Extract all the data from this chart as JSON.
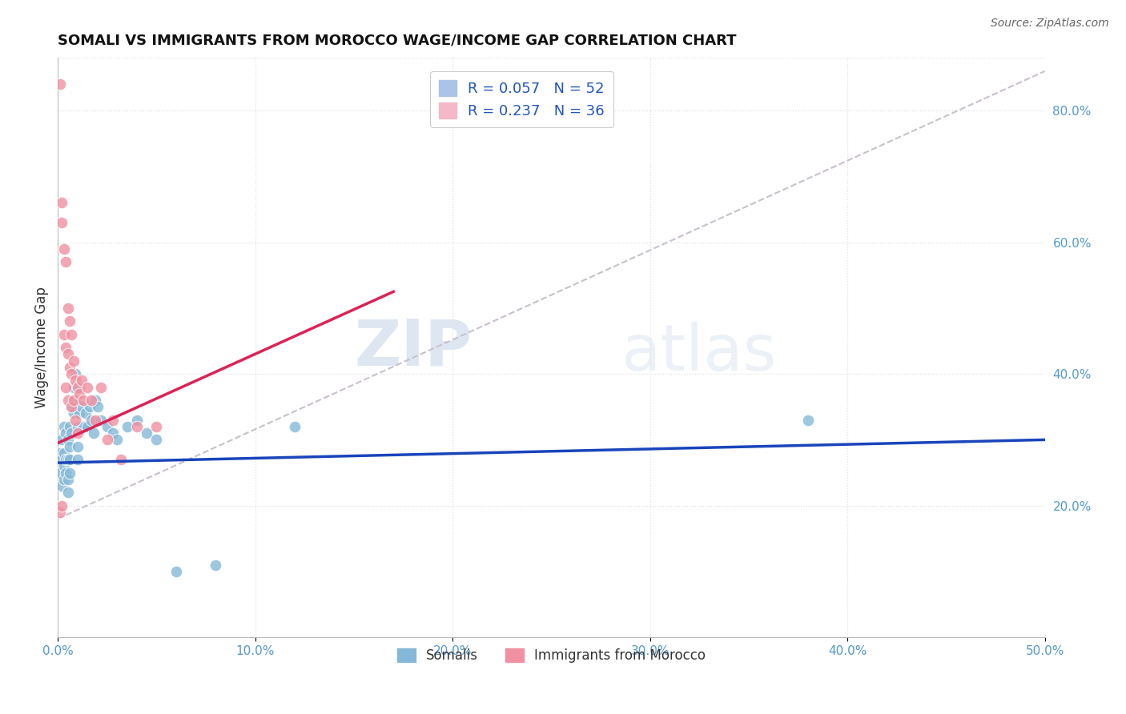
{
  "title": "SOMALI VS IMMIGRANTS FROM MOROCCO WAGE/INCOME GAP CORRELATION CHART",
  "source": "Source: ZipAtlas.com",
  "ylabel": "Wage/Income Gap",
  "right_yticks": [
    "20.0%",
    "40.0%",
    "60.0%",
    "80.0%"
  ],
  "right_ytick_vals": [
    0.2,
    0.4,
    0.6,
    0.8
  ],
  "watermark_zip": "ZIP",
  "watermark_atlas": "atlas",
  "legend1_label": "R = 0.057   N = 52",
  "legend2_label": "R = 0.237   N = 36",
  "legend1_color": "#aac4e8",
  "legend2_color": "#f5b8c8",
  "somali_color": "#85b8d8",
  "morocco_color": "#f090a0",
  "trendline_somali_color": "#1a44bb",
  "trendline_morocco_color": "#dd2255",
  "trendline_diag_color": "#c8c0cc",
  "somali_x": [
    0.001,
    0.001,
    0.002,
    0.002,
    0.002,
    0.003,
    0.003,
    0.003,
    0.003,
    0.004,
    0.004,
    0.004,
    0.005,
    0.005,
    0.005,
    0.005,
    0.006,
    0.006,
    0.006,
    0.006,
    0.007,
    0.007,
    0.008,
    0.008,
    0.009,
    0.009,
    0.01,
    0.01,
    0.01,
    0.011,
    0.011,
    0.012,
    0.013,
    0.014,
    0.015,
    0.016,
    0.017,
    0.018,
    0.019,
    0.02,
    0.022,
    0.025,
    0.028,
    0.03,
    0.035,
    0.04,
    0.045,
    0.05,
    0.06,
    0.08,
    0.12,
    0.38
  ],
  "somali_y": [
    0.28,
    0.25,
    0.3,
    0.27,
    0.23,
    0.32,
    0.28,
    0.26,
    0.24,
    0.31,
    0.27,
    0.25,
    0.3,
    0.27,
    0.24,
    0.22,
    0.32,
    0.29,
    0.27,
    0.25,
    0.35,
    0.31,
    0.38,
    0.34,
    0.4,
    0.36,
    0.32,
    0.29,
    0.27,
    0.38,
    0.34,
    0.35,
    0.32,
    0.34,
    0.32,
    0.35,
    0.33,
    0.31,
    0.36,
    0.35,
    0.33,
    0.32,
    0.31,
    0.3,
    0.32,
    0.33,
    0.31,
    0.3,
    0.1,
    0.11,
    0.32,
    0.33
  ],
  "morocco_x": [
    0.001,
    0.001,
    0.002,
    0.002,
    0.002,
    0.003,
    0.003,
    0.004,
    0.004,
    0.004,
    0.005,
    0.005,
    0.005,
    0.006,
    0.006,
    0.007,
    0.007,
    0.007,
    0.008,
    0.008,
    0.009,
    0.009,
    0.01,
    0.01,
    0.011,
    0.012,
    0.013,
    0.015,
    0.017,
    0.019,
    0.022,
    0.025,
    0.028,
    0.032,
    0.04,
    0.05
  ],
  "morocco_y": [
    0.84,
    0.19,
    0.66,
    0.63,
    0.2,
    0.59,
    0.46,
    0.57,
    0.44,
    0.38,
    0.5,
    0.43,
    0.36,
    0.48,
    0.41,
    0.46,
    0.4,
    0.35,
    0.42,
    0.36,
    0.39,
    0.33,
    0.38,
    0.31,
    0.37,
    0.39,
    0.36,
    0.38,
    0.36,
    0.33,
    0.38,
    0.3,
    0.33,
    0.27,
    0.32,
    0.32
  ],
  "xlim": [
    0.0,
    0.5
  ],
  "ylim": [
    0.0,
    0.88
  ],
  "xtick_vals": [
    0.0,
    0.1,
    0.2,
    0.3,
    0.4,
    0.5
  ],
  "xtick_labels": [
    "0.0%",
    "10.0%",
    "20.0%",
    "30.0%",
    "40.0%",
    "50.0%"
  ],
  "background_color": "#ffffff",
  "grid_color": "#e0e0e0",
  "tick_color": "#5599cc",
  "label_color": "#333333",
  "title_color": "#111111"
}
